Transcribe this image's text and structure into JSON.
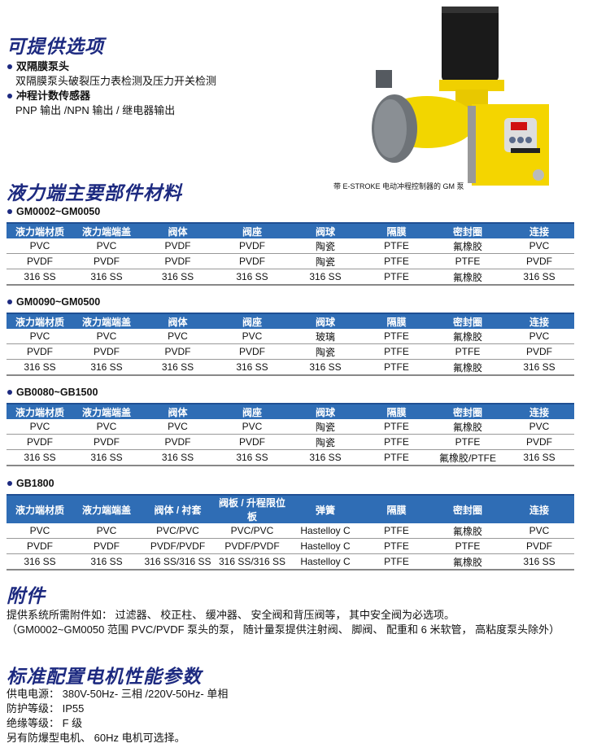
{
  "options": {
    "title": "可提供选项",
    "items": [
      {
        "label": "双隔膜泵头",
        "detail": "双隔膜泵头破裂压力表检测及压力开关检测"
      },
      {
        "label": "冲程计数传感器",
        "detail": "PNP 输出 /NPN 输出 / 继电器输出"
      }
    ]
  },
  "product_image": {
    "caption": "带 E-STROKE 电动冲程控制器的 GM 泵",
    "brand_label": "E-STROKE"
  },
  "materials": {
    "title": "液力端主要部件材料",
    "tables": [
      {
        "model": "GM0002~GM0050",
        "headers": [
          "液力端材质",
          "液力端端盖",
          "阀体",
          "阀座",
          "阀球",
          "隔膜",
          "密封圈",
          "连接"
        ],
        "rows": [
          [
            "PVC",
            "PVC",
            "PVDF",
            "PVDF",
            "陶瓷",
            "PTFE",
            "氟橡胶",
            "PVC"
          ],
          [
            "PVDF",
            "PVDF",
            "PVDF",
            "PVDF",
            "陶瓷",
            "PTFE",
            "PTFE",
            "PVDF"
          ],
          [
            "316 SS",
            "316 SS",
            "316 SS",
            "316 SS",
            "316 SS",
            "PTFE",
            "氟橡胶",
            "316 SS"
          ]
        ]
      },
      {
        "model": "GM0090~GM0500",
        "headers": [
          "液力端材质",
          "液力端端盖",
          "阀体",
          "阀座",
          "阀球",
          "隔膜",
          "密封圈",
          "连接"
        ],
        "rows": [
          [
            "PVC",
            "PVC",
            "PVC",
            "PVC",
            "玻璃",
            "PTFE",
            "氟橡胶",
            "PVC"
          ],
          [
            "PVDF",
            "PVDF",
            "PVDF",
            "PVDF",
            "陶瓷",
            "PTFE",
            "PTFE",
            "PVDF"
          ],
          [
            "316 SS",
            "316 SS",
            "316 SS",
            "316 SS",
            "316 SS",
            "PTFE",
            "氟橡胶",
            "316 SS"
          ]
        ]
      },
      {
        "model": "GB0080~GB1500",
        "headers": [
          "液力端材质",
          "液力端端盖",
          "阀体",
          "阀座",
          "阀球",
          "隔膜",
          "密封圈",
          "连接"
        ],
        "rows": [
          [
            "PVC",
            "PVC",
            "PVC",
            "PVC",
            "陶瓷",
            "PTFE",
            "氟橡胶",
            "PVC"
          ],
          [
            "PVDF",
            "PVDF",
            "PVDF",
            "PVDF",
            "陶瓷",
            "PTFE",
            "PTFE",
            "PVDF"
          ],
          [
            "316 SS",
            "316 SS",
            "316 SS",
            "316 SS",
            "316 SS",
            "PTFE",
            "氟橡胶/PTFE",
            "316 SS"
          ]
        ]
      },
      {
        "model": "GB1800",
        "headers": [
          "液力端材质",
          "液力端端盖",
          "阀体 / 衬套",
          "阀板 / 升程限位板",
          "弹簧",
          "隔膜",
          "密封圈",
          "连接"
        ],
        "rows": [
          [
            "PVC",
            "PVC",
            "PVC/PVC",
            "PVC/PVC",
            "Hastelloy C",
            "PTFE",
            "氟橡胶",
            "PVC"
          ],
          [
            "PVDF",
            "PVDF",
            "PVDF/PVDF",
            "PVDF/PVDF",
            "Hastelloy C",
            "PTFE",
            "PTFE",
            "PVDF"
          ],
          [
            "316 SS",
            "316 SS",
            "316 SS/316 SS",
            "316 SS/316 SS",
            "Hastelloy C",
            "PTFE",
            "氟橡胶",
            "316 SS"
          ]
        ]
      }
    ]
  },
  "accessories": {
    "title": "附件",
    "lines": [
      "提供系统所需附件如： 过滤器、 校正柱、 缓冲器、 安全阀和背压阀等， 其中安全阀为必选项。",
      "（GM0002~GM0050 范围 PVC/PVDF 泵头的泵， 随计量泵提供注射阀、 脚阀、 配重和 6 米软管， 高粘度泵头除外）"
    ]
  },
  "motor": {
    "title": "标准配置电机性能参数",
    "lines": [
      "供电电源： 380V-50Hz- 三相 /220V-50Hz- 单相",
      "防护等级： IP55",
      "绝缘等级： F 级",
      "另有防爆型电机、 60Hz 电机可选择。"
    ]
  },
  "colors": {
    "heading": "#1d2a80",
    "table_header": "#2f6db5",
    "pump_body": "#f2d600"
  }
}
